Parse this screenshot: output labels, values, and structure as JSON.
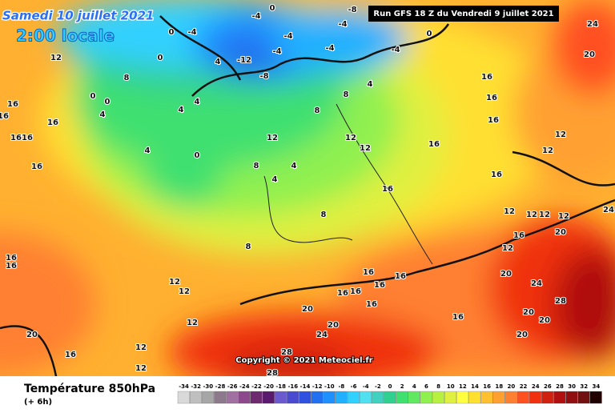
{
  "header": {
    "date": "Samedi 10 juillet 2021",
    "time": "2:00 locale",
    "run": "Run GFS 18 Z du Vendredi 9 juillet 2021",
    "copyright": "Copyright © 2021 Meteociel.fr"
  },
  "footer": {
    "title": "Température 850hPa",
    "subtitle": "(+ 6h)"
  },
  "scale": {
    "labels": [
      "-34",
      "-32",
      "-30",
      "-28",
      "-26",
      "-24",
      "-22",
      "-20",
      "-18",
      "-16",
      "-14",
      "-12",
      "-10",
      "-8",
      "-6",
      "-4",
      "-2",
      "0",
      "2",
      "4",
      "6",
      "8",
      "10",
      "12",
      "14",
      "16",
      "18",
      "20",
      "22",
      "24",
      "26",
      "28",
      "30",
      "32",
      "34"
    ],
    "colors": [
      "#d9d9d9",
      "#bfbfbf",
      "#a6a6a6",
      "#8c7a8c",
      "#a070a0",
      "#8c4a8c",
      "#6e2a6e",
      "#5a1a6e",
      "#6a5acd",
      "#4a4ad0",
      "#3050e0",
      "#2070f0",
      "#1e90ff",
      "#20b0ff",
      "#30d0ff",
      "#50e0f0",
      "#40d0c0",
      "#30d090",
      "#40e070",
      "#60e860",
      "#90f050",
      "#b8f040",
      "#e0f040",
      "#ffff40",
      "#ffe030",
      "#ffc030",
      "#ffa030",
      "#ff8030",
      "#ff5020",
      "#f03010",
      "#d02010",
      "#b01010",
      "#901010",
      "#701010",
      "#200000"
    ]
  },
  "map_labels": [
    "12",
    "8",
    "0",
    "0",
    "4",
    "16",
    "16",
    "16",
    "16",
    "16",
    "16",
    "4",
    "0",
    "4",
    "4",
    "4",
    "-12",
    "-8",
    "-4",
    "-4",
    "-8",
    "-4",
    "-4",
    "0",
    "4",
    "8",
    "8",
    "12",
    "8",
    "4",
    "4",
    "8",
    "8",
    "12",
    "12",
    "16",
    "16",
    "16",
    "16",
    "16",
    "16",
    "12",
    "12",
    "12",
    "12",
    "12",
    "12",
    "16",
    "20",
    "12",
    "20",
    "24",
    "28",
    "20",
    "20",
    "20",
    "16",
    "16",
    "16",
    "16",
    "16",
    "20",
    "20",
    "24",
    "16",
    "16",
    "28",
    "28",
    "12",
    "12",
    "12",
    "12",
    "12",
    "20",
    "16",
    "16",
    "16",
    "24",
    "20",
    "24",
    "0",
    "0",
    "-4",
    "0",
    "-4",
    "-4"
  ]
}
